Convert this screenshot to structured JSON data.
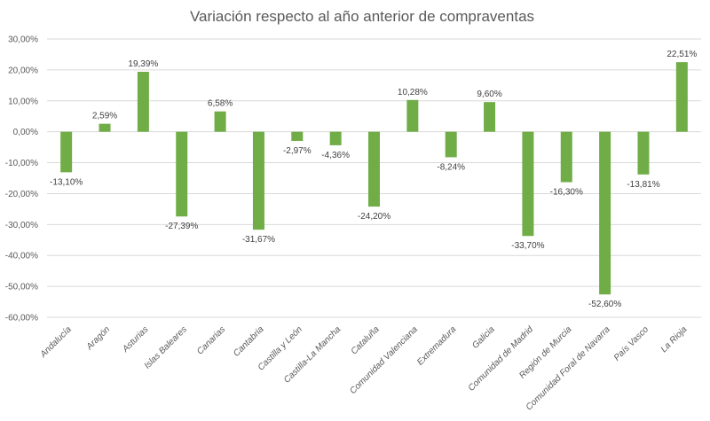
{
  "chart_data": {
    "type": "bar",
    "title": "Variación respecto al año anterior de compraventas",
    "xlabel": "",
    "ylabel": "",
    "ylim": [
      -60,
      30
    ],
    "yticks": [
      30,
      20,
      10,
      0,
      -10,
      -20,
      -30,
      -40,
      -50,
      -60
    ],
    "ytick_labels": [
      "30,00%",
      "20,00%",
      "10,00%",
      "0,00%",
      "-10,00%",
      "-20,00%",
      "-30,00%",
      "-40,00%",
      "-50,00%",
      "-60,00%"
    ],
    "grid": true,
    "bar_color": "#70ad47",
    "categories": [
      "Andalucía",
      "Aragón",
      "Asturias",
      "Islas Baleares",
      "Canarias",
      "Cantabria",
      "Castilla y León",
      "Castilla-La Mancha",
      "Cataluña",
      "Comunidad Valenciana",
      "Extremadura",
      "Galicia",
      "Comunidad de Madrid",
      "Región de Murcia",
      "Comunidad Foral de Navarra",
      "País Vasco",
      "La Rioja"
    ],
    "values": [
      -13.1,
      2.59,
      19.39,
      -27.39,
      6.58,
      -31.67,
      -2.97,
      -4.36,
      -24.2,
      10.28,
      -8.24,
      9.6,
      -33.7,
      -16.3,
      -52.6,
      -13.81,
      22.51
    ],
    "data_labels": [
      "-13,10%",
      "2,59%",
      "19,39%",
      "-27,39%",
      "6,58%",
      "-31,67%",
      "-2,97%",
      "-4,36%",
      "-24,20%",
      "10,28%",
      "-8,24%",
      "9,60%",
      "-33,70%",
      "-16,30%",
      "-52,60%",
      "-13,81%",
      "22,51%"
    ]
  }
}
